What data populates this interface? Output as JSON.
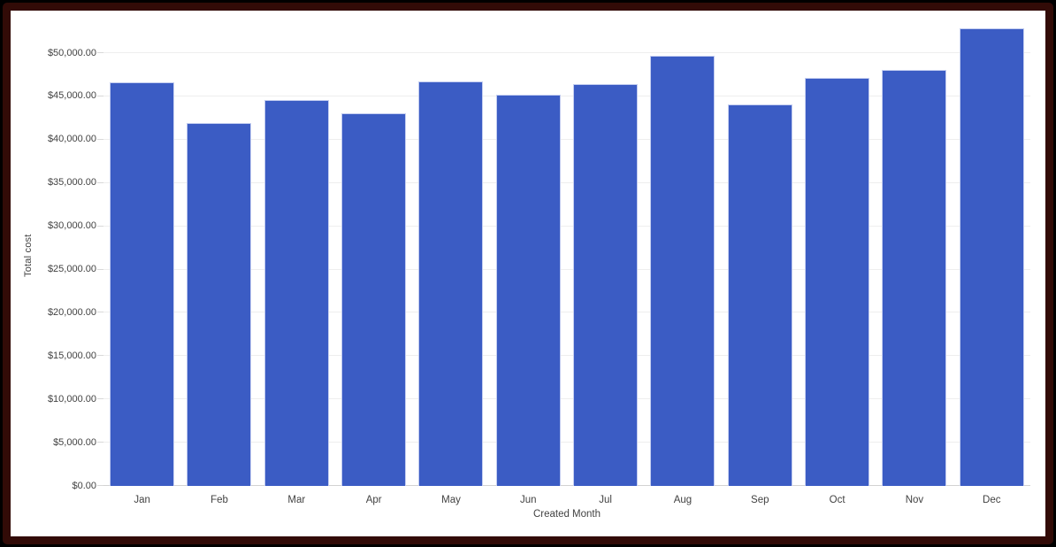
{
  "frame": {
    "outer_color": "#000000",
    "border_color": "#320b07",
    "card_color": "#ffffff"
  },
  "chart_data": {
    "type": "bar",
    "xlabel": "Created Month",
    "ylabel": "Total cost",
    "categories": [
      "Jan",
      "Feb",
      "Mar",
      "Apr",
      "May",
      "Jun",
      "Jul",
      "Aug",
      "Sep",
      "Oct",
      "Nov",
      "Dec"
    ],
    "values": [
      46600,
      41900,
      44600,
      43000,
      46700,
      45200,
      46400,
      49650,
      44050,
      47100,
      48050,
      52900
    ],
    "ylim": [
      0,
      50000
    ],
    "ytick_step": 5000,
    "ytick_labels": [
      "$0.00",
      "$5,000.00",
      "$10,000.00",
      "$15,000.00",
      "$20,000.00",
      "$25,000.00",
      "$30,000.00",
      "$35,000.00",
      "$40,000.00",
      "$45,000.00",
      "$50,000.00"
    ],
    "grid": "on",
    "legend": "none",
    "bar_color": "#3b5cc4",
    "bar_edge_color": "#c3cdf0",
    "gridline_color": "#eeeeee",
    "axis_text_color": "#424242"
  }
}
